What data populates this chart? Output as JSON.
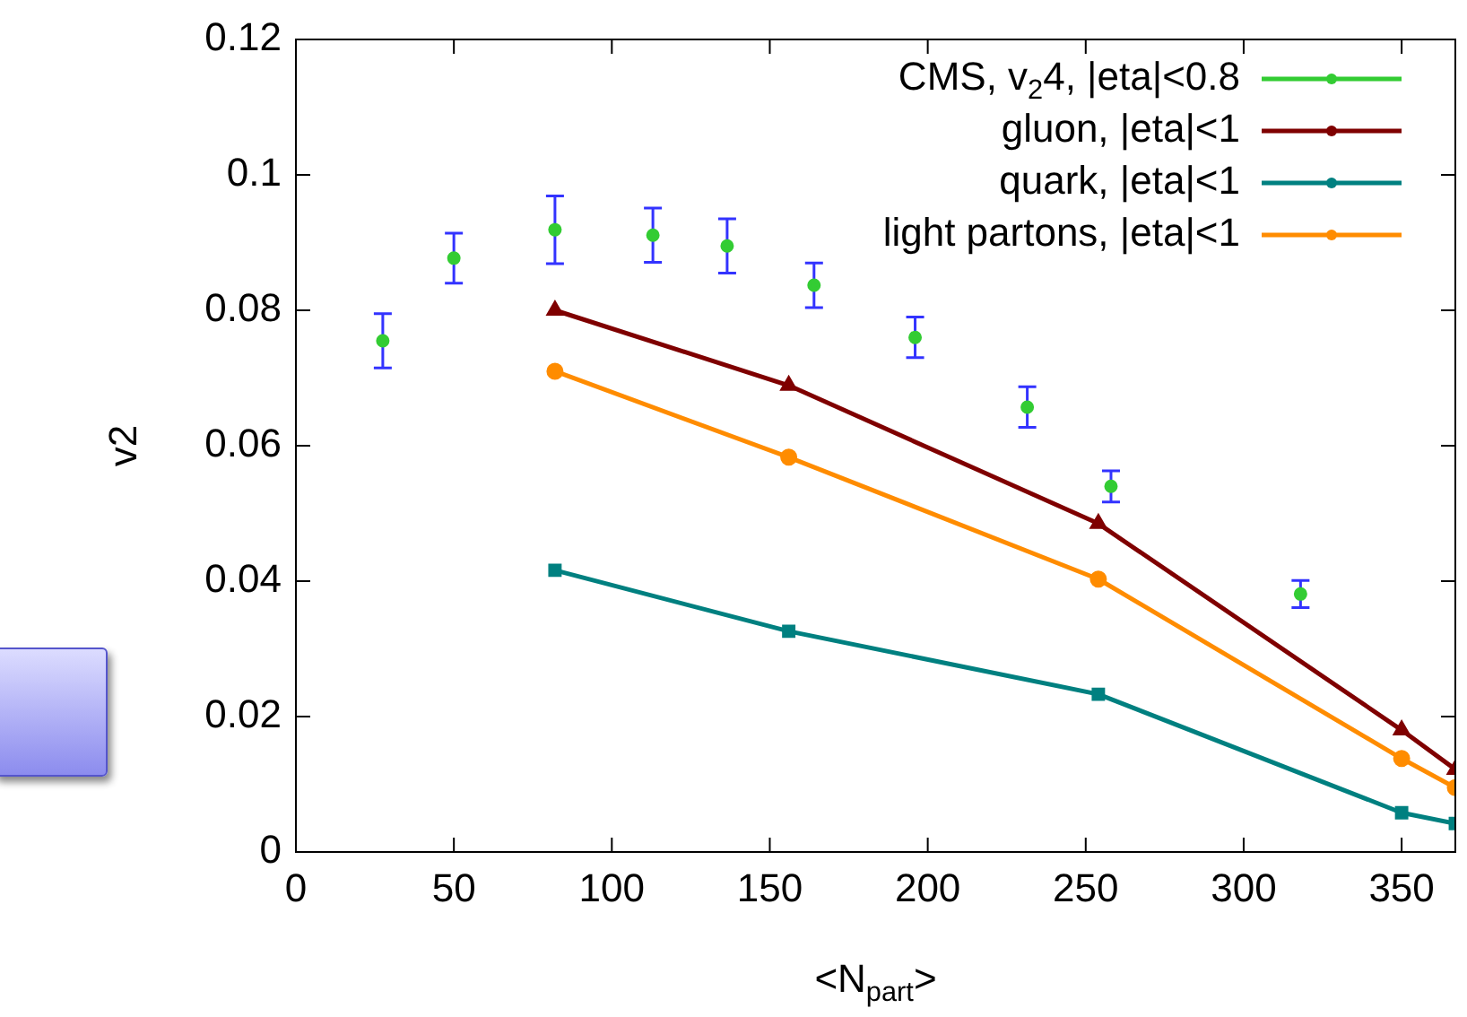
{
  "chart_data": {
    "type": "line",
    "xlabel": "<N$_{part}$>",
    "ylabel": "v2",
    "xlim": [
      0,
      367
    ],
    "xticks": [
      0,
      50,
      100,
      150,
      200,
      250,
      300,
      350
    ],
    "ylim": [
      0,
      0.12
    ],
    "yticks": [
      0,
      0.02,
      0.04,
      0.06,
      0.08,
      0.1,
      0.12
    ],
    "grid": false,
    "legend": "top right",
    "line_style": "solid",
    "series": [
      {
        "name": "CMS, v$_{2}$4, |eta|<0.8",
        "type": "scatter",
        "marker": "circle",
        "color": "#33cc33",
        "x": [
          27.5,
          50,
          82,
          113,
          136.5,
          164,
          196,
          231.5,
          258,
          318
        ],
        "values": [
          0.0755,
          0.0877,
          0.0919,
          0.0911,
          0.0895,
          0.0837,
          0.076,
          0.0657,
          0.054,
          0.0381
        ],
        "errors": [
          0.004,
          0.0037,
          0.005,
          0.004,
          0.004,
          0.0033,
          0.003,
          0.003,
          0.0023,
          0.002
        ]
      },
      {
        "name": "gluon, |eta|<1",
        "type": "line",
        "marker": "triangle",
        "color": "#7f0000",
        "x": [
          82,
          156,
          254,
          350,
          367
        ],
        "values": [
          0.08,
          0.0689,
          0.0485,
          0.018,
          0.0122
        ]
      },
      {
        "name": "quark, |eta|<1",
        "type": "line",
        "marker": "square",
        "color": "#008080",
        "x": [
          82,
          156,
          254,
          350,
          367
        ],
        "values": [
          0.0416,
          0.0326,
          0.0233,
          0.0058,
          0.0042
        ]
      },
      {
        "name": "light partons, |eta|<1",
        "type": "line",
        "marker": "circle",
        "color": "#ff8c00",
        "x": [
          82,
          156,
          254,
          350,
          367
        ],
        "values": [
          0.071,
          0.0583,
          0.0403,
          0.0138,
          0.0095
        ]
      }
    ]
  }
}
